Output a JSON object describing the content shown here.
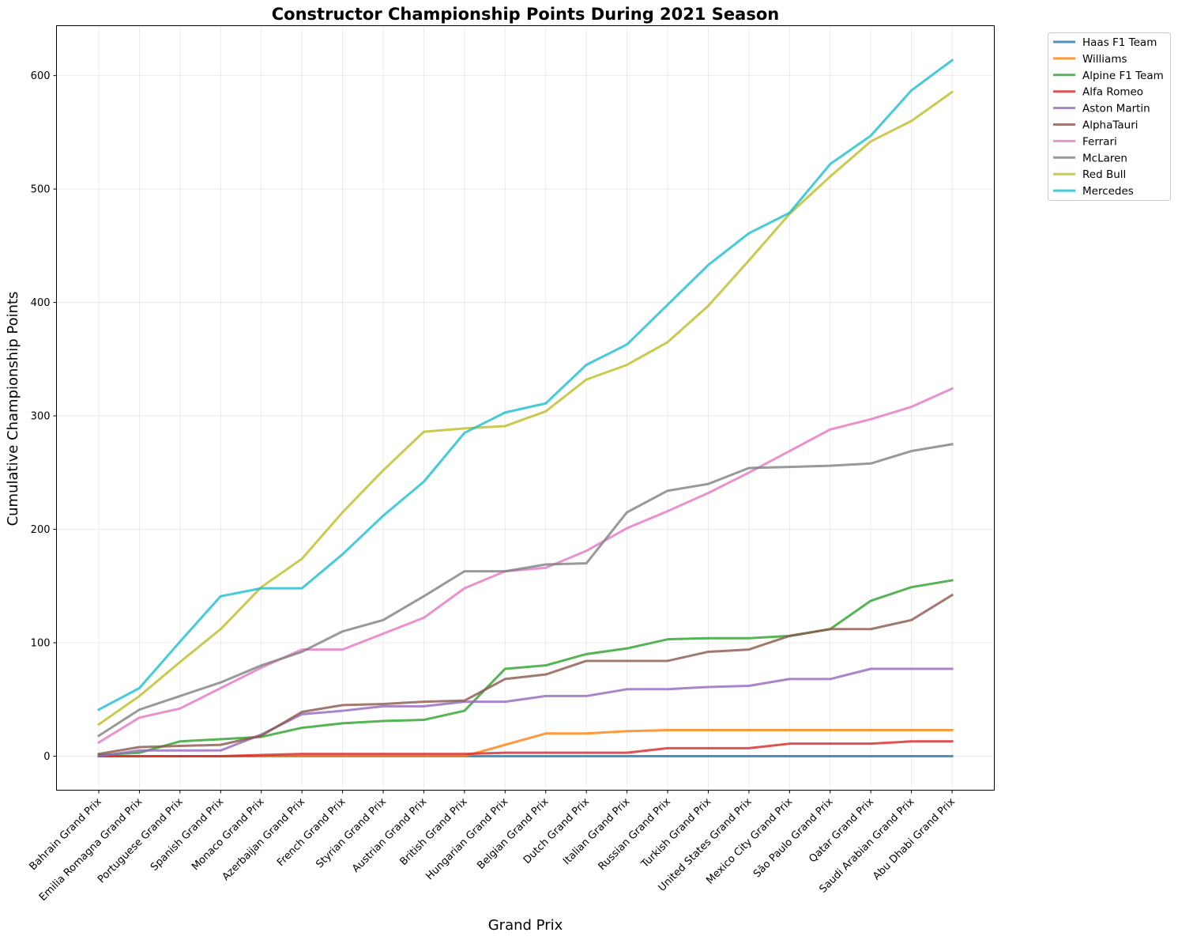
{
  "chart_data": {
    "type": "line",
    "title": "Constructor Championship Points During 2021 Season",
    "xlabel": "Grand Prix",
    "ylabel": "Cumulative Championship Points",
    "ylim": [
      -30,
      644
    ],
    "yticks": [
      0,
      100,
      200,
      300,
      400,
      500,
      600
    ],
    "grid": true,
    "legend_position": "outside-top-right",
    "categories": [
      "Bahrain Grand Prix",
      "Emilia Romagna Grand Prix",
      "Portuguese Grand Prix",
      "Spanish Grand Prix",
      "Monaco Grand Prix",
      "Azerbaijan Grand Prix",
      "French Grand Prix",
      "Styrian Grand Prix",
      "Austrian Grand Prix",
      "British Grand Prix",
      "Hungarian Grand Prix",
      "Belgian Grand Prix",
      "Dutch Grand Prix",
      "Italian Grand Prix",
      "Russian Grand Prix",
      "Turkish Grand Prix",
      "United States Grand Prix",
      "Mexico City Grand Prix",
      "São Paulo Grand Prix",
      "Qatar Grand Prix",
      "Saudi Arabian Grand Prix",
      "Abu Dhabi Grand Prix"
    ],
    "series": [
      {
        "name": "Haas F1 Team",
        "color": "#1f77b4",
        "values": [
          0,
          0,
          0,
          0,
          0,
          0,
          0,
          0,
          0,
          0,
          0,
          0,
          0,
          0,
          0,
          0,
          0,
          0,
          0,
          0,
          0,
          0
        ]
      },
      {
        "name": "Williams",
        "color": "#ff7f0e",
        "values": [
          0,
          0,
          0,
          0,
          0,
          0,
          0,
          0,
          0,
          0,
          10,
          20,
          20,
          22,
          23,
          23,
          23,
          23,
          23,
          23,
          23,
          23
        ]
      },
      {
        "name": "Alpine F1 Team",
        "color": "#2ca02c",
        "values": [
          1,
          3,
          13,
          15,
          17,
          25,
          29,
          31,
          32,
          40,
          77,
          80,
          90,
          95,
          103,
          104,
          104,
          106,
          112,
          137,
          149,
          155
        ]
      },
      {
        "name": "Alfa Romeo",
        "color": "#d62728",
        "values": [
          0,
          0,
          0,
          0,
          1,
          2,
          2,
          2,
          2,
          2,
          3,
          3,
          3,
          3,
          7,
          7,
          7,
          11,
          11,
          11,
          13,
          13
        ]
      },
      {
        "name": "Aston Martin",
        "color": "#9467bd",
        "values": [
          0,
          5,
          5,
          5,
          19,
          37,
          40,
          44,
          44,
          48,
          48,
          53,
          53,
          59,
          59,
          61,
          62,
          68,
          68,
          77,
          77,
          77
        ]
      },
      {
        "name": "AlphaTauri",
        "color": "#8c564b",
        "values": [
          2,
          8,
          9,
          10,
          18,
          39,
          45,
          46,
          48,
          49,
          68,
          72,
          84,
          84,
          84,
          92,
          94,
          106,
          112,
          112,
          120,
          142
        ]
      },
      {
        "name": "Ferrari",
        "color": "#e377c2",
        "values": [
          12,
          34,
          42,
          60,
          78,
          94,
          94,
          108,
          122,
          148,
          163,
          166,
          181,
          201,
          216,
          232,
          250,
          269,
          288,
          297,
          308,
          324
        ]
      },
      {
        "name": "McLaren",
        "color": "#7f7f7f",
        "values": [
          18,
          41,
          53,
          65,
          80,
          92,
          110,
          120,
          141,
          163,
          163,
          169,
          170,
          215,
          234,
          240,
          254,
          255,
          256,
          258,
          269,
          275
        ]
      },
      {
        "name": "Red Bull",
        "color": "#bcbd22",
        "values": [
          28,
          53,
          83,
          112,
          149,
          174,
          215,
          252,
          286,
          289,
          291,
          304,
          332,
          345,
          365,
          397,
          437,
          478,
          511,
          542,
          560,
          585.5
        ]
      },
      {
        "name": "Mercedes",
        "color": "#17becf",
        "values": [
          41,
          60,
          101,
          141,
          148,
          148,
          178,
          212,
          242,
          285,
          303,
          311,
          345,
          363,
          398,
          433,
          461,
          479,
          522,
          547,
          587,
          613.5
        ]
      }
    ]
  }
}
